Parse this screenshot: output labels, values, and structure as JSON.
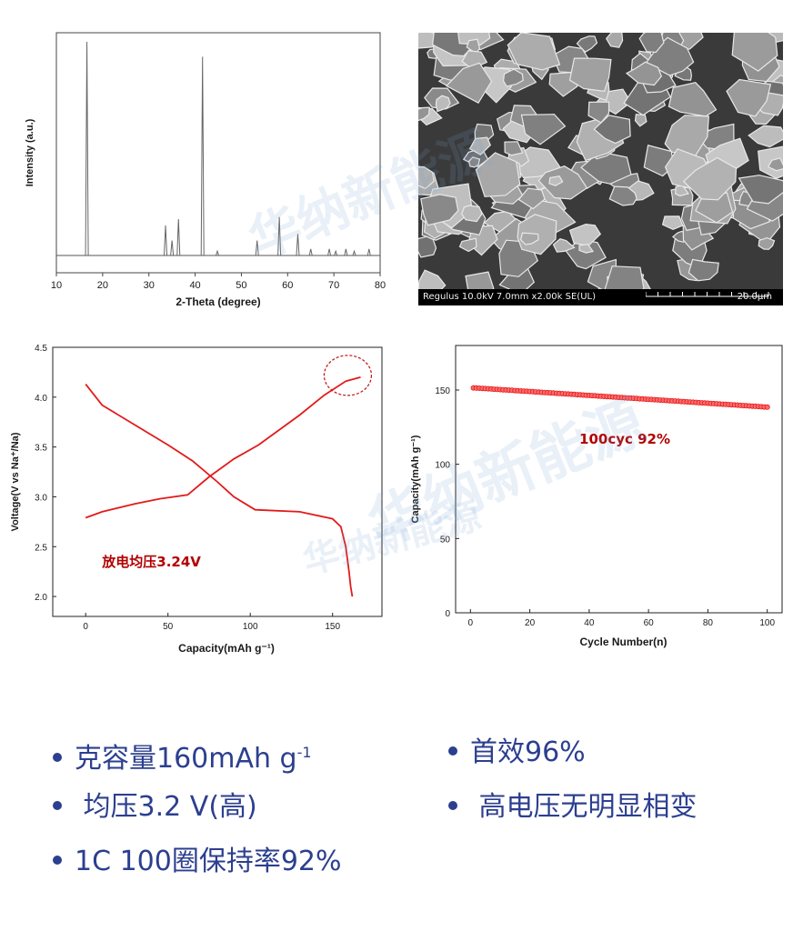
{
  "chart_data": [
    {
      "type": "line",
      "id": "xrd",
      "xlabel": "2-Theta (degree)",
      "ylabel": "Intensity (a.u.)",
      "xlim": [
        10,
        80
      ],
      "xticks": [
        10,
        20,
        30,
        40,
        50,
        60,
        70,
        80
      ],
      "yticks_shown": false,
      "baseline": 3,
      "peaks": [
        {
          "x": 16.6,
          "y": 100
        },
        {
          "x": 33.6,
          "y": 14
        },
        {
          "x": 35.0,
          "y": 7
        },
        {
          "x": 36.4,
          "y": 17
        },
        {
          "x": 41.6,
          "y": 93
        },
        {
          "x": 44.8,
          "y": 2
        },
        {
          "x": 53.4,
          "y": 7
        },
        {
          "x": 58.2,
          "y": 18
        },
        {
          "x": 62.2,
          "y": 10
        },
        {
          "x": 65.0,
          "y": 3
        },
        {
          "x": 69.0,
          "y": 3
        },
        {
          "x": 70.4,
          "y": 2
        },
        {
          "x": 72.6,
          "y": 3
        },
        {
          "x": 74.4,
          "y": 2
        },
        {
          "x": 77.6,
          "y": 3
        }
      ]
    },
    {
      "type": "line",
      "id": "voltage",
      "xlabel": "Capacity(mAh g⁻¹)",
      "ylabel": "Voltage(V vs Na⁺/Na)",
      "xlim": [
        -20,
        180
      ],
      "ylim": [
        1.8,
        4.5
      ],
      "xticks": [
        0,
        50,
        100,
        150
      ],
      "yticks": [
        2.0,
        2.5,
        3.0,
        3.5,
        4.0,
        4.5
      ],
      "ytick_labels": [
        "2.0",
        "2.5",
        "3.0",
        "3.5",
        "4.0",
        "4.5"
      ],
      "color": "#e31a1a",
      "series": [
        {
          "x": [
            0,
            10,
            30,
            50,
            65,
            80,
            90,
            103,
            130,
            150,
            155,
            158,
            160,
            161,
            162
          ],
          "y": [
            4.13,
            3.92,
            3.72,
            3.52,
            3.36,
            3.15,
            3.0,
            2.87,
            2.85,
            2.78,
            2.7,
            2.5,
            2.25,
            2.1,
            2.0
          ]
        },
        {
          "x": [
            0,
            10,
            30,
            45,
            62,
            75,
            90,
            105,
            130,
            145,
            158,
            167
          ],
          "y": [
            2.79,
            2.85,
            2.93,
            2.98,
            3.02,
            3.2,
            3.38,
            3.52,
            3.82,
            4.02,
            4.16,
            4.2
          ]
        }
      ],
      "annotation": "放电均压3.24V",
      "highlight": {
        "x": 162,
        "y": 4.2
      }
    },
    {
      "type": "scatter",
      "id": "cycle",
      "xlabel": "Cycle Number(n)",
      "ylabel": "Capacity(mAh g⁻¹)",
      "xlim": [
        -5,
        105
      ],
      "ylim": [
        0,
        180
      ],
      "xticks": [
        0,
        20,
        40,
        60,
        80,
        100
      ],
      "yticks": [
        0,
        50,
        100,
        150
      ],
      "color": "#e31a1a",
      "start": {
        "x": 1,
        "y": 151.5
      },
      "end": {
        "x": 100,
        "y": 138.5
      },
      "annotation": "100cyc 92%"
    }
  ],
  "sem": {
    "caption_left": "Regulus 10.0kV 7.0mm x2.00k SE(UL)",
    "caption_right": "20.0μm"
  },
  "watermark": "华纳新能源",
  "bullets": {
    "capacity_prefix": "克容量160mAh g",
    "capacity_sup": "-1",
    "efficiency": "首效96%",
    "avg_voltage": "均压3.2 V(高)",
    "no_phase": "高电压无明显相变",
    "retention": "1C 100圈保持率92%"
  }
}
